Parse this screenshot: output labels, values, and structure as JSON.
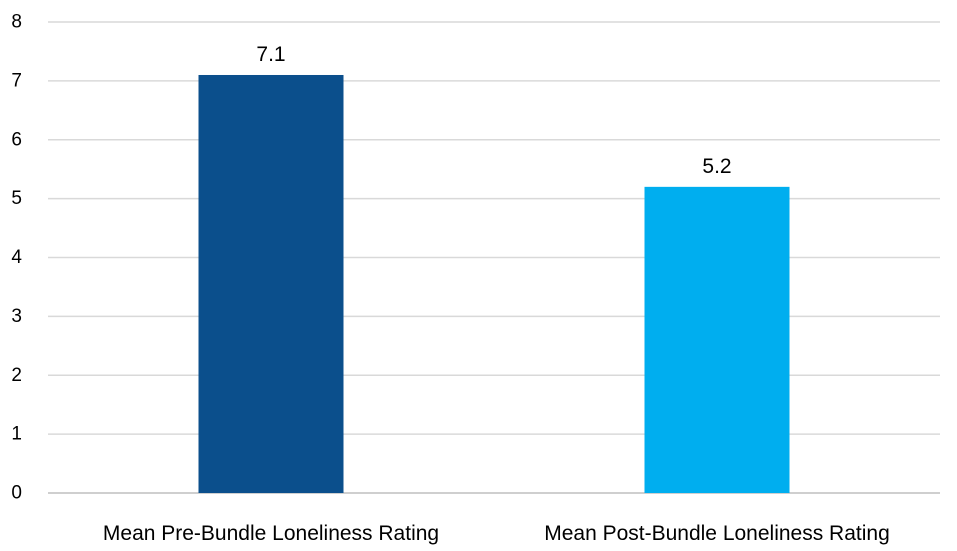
{
  "chart_data": {
    "type": "bar",
    "title": "",
    "xlabel": "",
    "ylabel": "",
    "categories": [
      "Mean Pre-Bundle Loneliness Rating",
      "Mean Post-Bundle Loneliness Rating"
    ],
    "values": [
      7.1,
      5.2
    ],
    "data_labels": [
      "7.1",
      "5.2"
    ],
    "bar_colors": [
      "#0B4F8C",
      "#00AEEF"
    ],
    "ylim": [
      0,
      8
    ],
    "yticks": [
      0,
      1,
      2,
      3,
      4,
      5,
      6,
      7,
      8
    ],
    "ytick_labels": [
      "0",
      "1",
      "2",
      "3",
      "4",
      "5",
      "6",
      "7",
      "8"
    ],
    "grid": true,
    "legend": "none",
    "colors": {
      "grid": "#D9D9D9",
      "axis": "#BFBFBF",
      "text": "#000000"
    }
  }
}
